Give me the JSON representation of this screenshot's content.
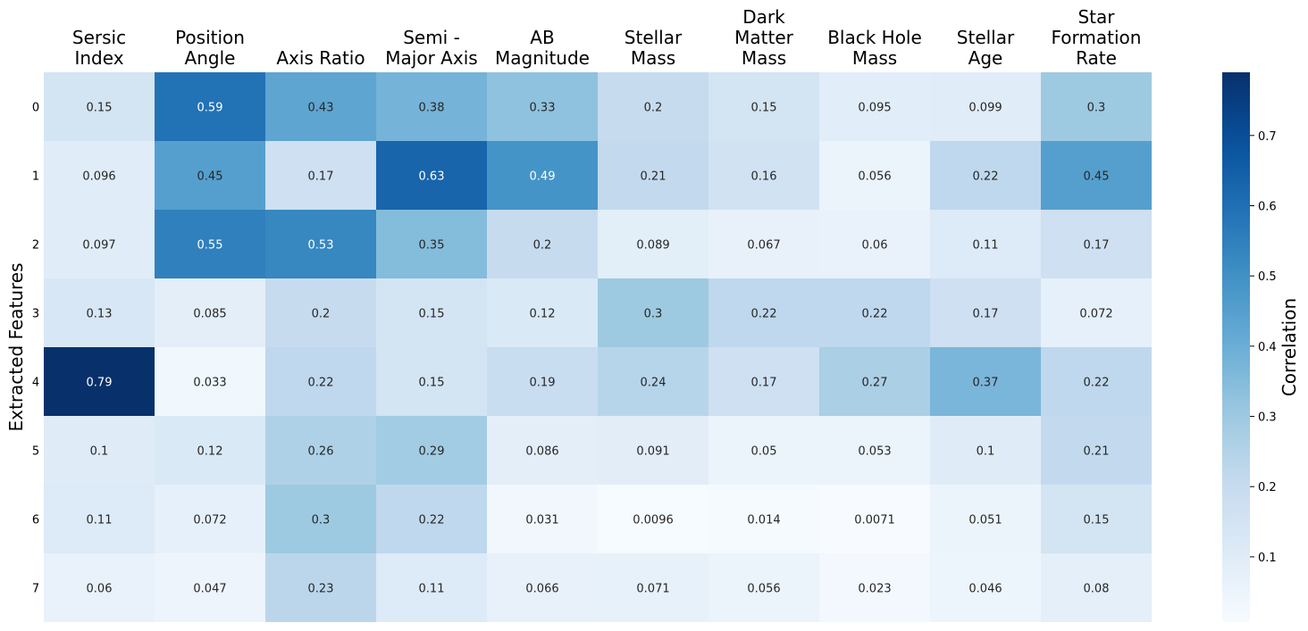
{
  "chart_data": {
    "type": "heatmap",
    "ylabel": "Extracted Features",
    "columns": [
      [
        "Sersic",
        "Index"
      ],
      [
        "Position",
        "Angle"
      ],
      [
        "Axis Ratio"
      ],
      [
        "Semi -",
        "Major Axis"
      ],
      [
        "AB",
        "Magnitude"
      ],
      [
        "Stellar",
        "Mass"
      ],
      [
        "Dark",
        "Matter",
        "Mass"
      ],
      [
        "Black Hole",
        "Mass"
      ],
      [
        "Stellar",
        "Age"
      ],
      [
        "Star",
        "Formation",
        "Rate"
      ]
    ],
    "rows": [
      "0",
      "1",
      "2",
      "3",
      "4",
      "5",
      "6",
      "7"
    ],
    "values": [
      [
        "0.15",
        "0.59",
        "0.43",
        "0.38",
        "0.33",
        "0.2",
        "0.15",
        "0.095",
        "0.099",
        "0.3"
      ],
      [
        "0.096",
        "0.45",
        "0.17",
        "0.63",
        "0.49",
        "0.21",
        "0.16",
        "0.056",
        "0.22",
        "0.45"
      ],
      [
        "0.097",
        "0.55",
        "0.53",
        "0.35",
        "0.2",
        "0.089",
        "0.067",
        "0.06",
        "0.11",
        "0.17"
      ],
      [
        "0.13",
        "0.085",
        "0.2",
        "0.15",
        "0.12",
        "0.3",
        "0.22",
        "0.22",
        "0.17",
        "0.072"
      ],
      [
        "0.79",
        "0.033",
        "0.22",
        "0.15",
        "0.19",
        "0.24",
        "0.17",
        "0.27",
        "0.37",
        "0.22"
      ],
      [
        "0.1",
        "0.12",
        "0.26",
        "0.29",
        "0.086",
        "0.091",
        "0.05",
        "0.053",
        "0.1",
        "0.21"
      ],
      [
        "0.11",
        "0.072",
        "0.3",
        "0.22",
        "0.031",
        "0.0096",
        "0.014",
        "0.0071",
        "0.051",
        "0.15"
      ],
      [
        "0.06",
        "0.047",
        "0.23",
        "0.11",
        "0.066",
        "0.071",
        "0.056",
        "0.023",
        "0.046",
        "0.08"
      ]
    ],
    "colorbar": {
      "label": "Correlation",
      "colormap": "Blues",
      "range": [
        0.0071,
        0.79
      ],
      "ticks": [
        "0.1",
        "0.2",
        "0.3",
        "0.4",
        "0.5",
        "0.6",
        "0.7"
      ]
    }
  }
}
